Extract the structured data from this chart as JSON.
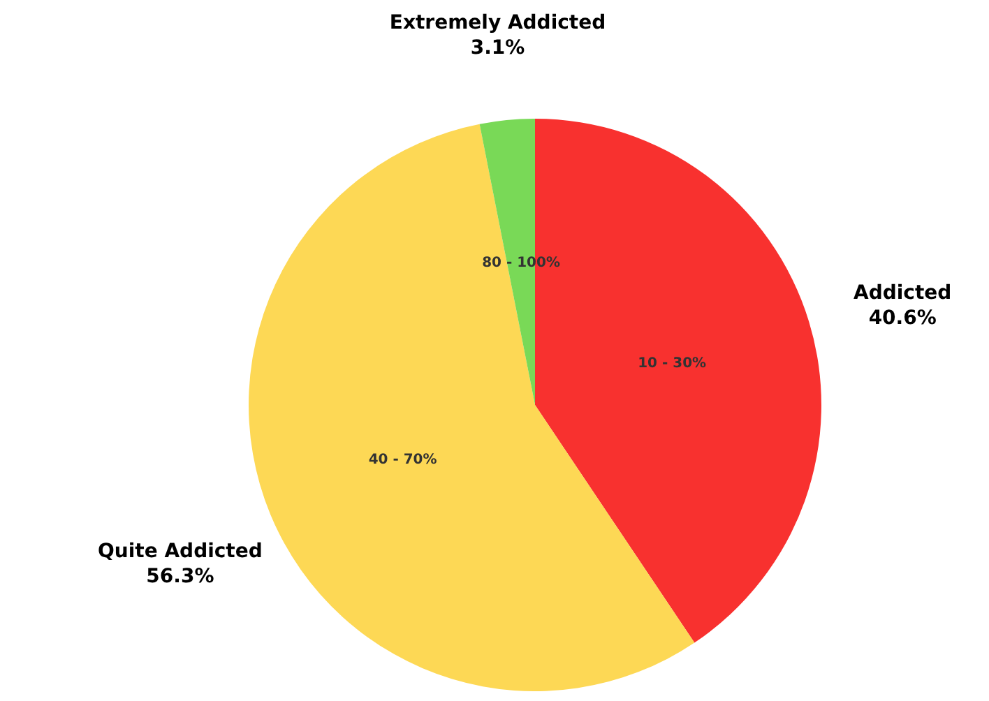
{
  "chart_data": {
    "type": "pie",
    "categories": [
      "Addicted",
      "Quite Addicted",
      "Extremely Addicted"
    ],
    "values": [
      40.6,
      56.3,
      3.1
    ],
    "colors": [
      "#f8312f",
      "#fdd855",
      "#79d957"
    ],
    "value_labels": [
      "40.6%",
      "56.3%",
      "3.1%"
    ],
    "annotations": [
      "10 - 30%",
      "40 - 70%",
      "80 - 100%"
    ]
  }
}
